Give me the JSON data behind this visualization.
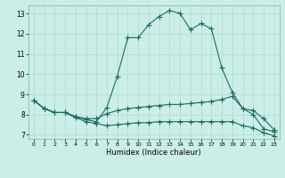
{
  "xlabel": "Humidex (Indice chaleur)",
  "bg_color": "#cceee8",
  "line_color": "#1a6b60",
  "xlim": [
    -0.5,
    23.5
  ],
  "ylim": [
    6.8,
    13.4
  ],
  "xticks": [
    0,
    1,
    2,
    3,
    4,
    5,
    6,
    7,
    8,
    9,
    10,
    11,
    12,
    13,
    14,
    15,
    16,
    17,
    18,
    19,
    20,
    21,
    22,
    23
  ],
  "yticks": [
    7,
    8,
    9,
    10,
    11,
    12,
    13
  ],
  "line1_x": [
    0,
    1,
    2,
    3,
    4,
    5,
    6,
    7,
    8,
    9,
    10,
    11,
    12,
    13,
    14,
    15,
    16,
    17,
    18,
    19,
    20,
    21,
    22,
    23
  ],
  "line1_y": [
    8.7,
    8.3,
    8.1,
    8.1,
    7.9,
    7.75,
    7.65,
    8.35,
    9.9,
    11.8,
    11.8,
    12.45,
    12.85,
    13.15,
    13.0,
    12.2,
    12.5,
    12.25,
    10.3,
    9.1,
    8.3,
    8.0,
    7.3,
    7.15
  ],
  "line2_x": [
    0,
    1,
    2,
    3,
    4,
    5,
    6,
    7,
    8,
    9,
    10,
    11,
    12,
    13,
    14,
    15,
    16,
    17,
    18,
    19,
    20,
    21,
    22,
    23
  ],
  "line2_y": [
    8.7,
    8.3,
    8.1,
    8.1,
    7.9,
    7.8,
    7.8,
    8.05,
    8.2,
    8.3,
    8.35,
    8.4,
    8.45,
    8.5,
    8.5,
    8.55,
    8.6,
    8.65,
    8.75,
    8.9,
    8.3,
    8.2,
    7.8,
    7.25
  ],
  "line3_x": [
    0,
    1,
    2,
    3,
    4,
    5,
    6,
    7,
    8,
    9,
    10,
    11,
    12,
    13,
    14,
    15,
    16,
    17,
    18,
    19,
    20,
    21,
    22,
    23
  ],
  "line3_y": [
    8.7,
    8.3,
    8.1,
    8.1,
    7.85,
    7.65,
    7.55,
    7.45,
    7.5,
    7.55,
    7.6,
    7.6,
    7.65,
    7.65,
    7.65,
    7.65,
    7.65,
    7.65,
    7.65,
    7.65,
    7.45,
    7.35,
    7.1,
    6.95
  ],
  "grid_color": "#b0d8d0",
  "marker_size": 4,
  "line_width": 0.8
}
